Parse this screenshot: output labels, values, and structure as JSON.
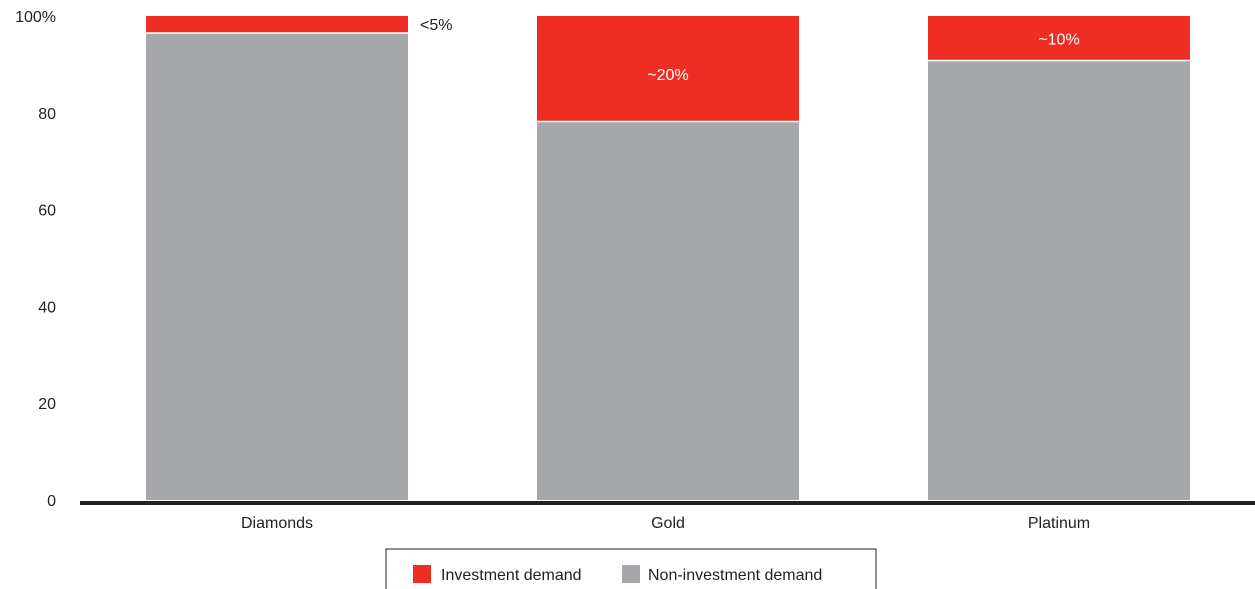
{
  "chart_data": {
    "type": "bar",
    "stacked": true,
    "categories": [
      "Diamonds",
      "Gold",
      "Platinum"
    ],
    "series": [
      {
        "name": "Non-investment demand",
        "values": [
          96.5,
          78.2,
          90.8
        ],
        "color": "#a7a8ab"
      },
      {
        "name": "Investment demand",
        "values": [
          3.5,
          21.8,
          9.2
        ],
        "color": "#ee2d24"
      }
    ],
    "data_labels": [
      "<5%",
      "~20%",
      "~10%"
    ],
    "yticks": [
      "0",
      "20",
      "40",
      "60",
      "80",
      "100%"
    ],
    "ylim": [
      0,
      100
    ],
    "title": "",
    "xlabel": "",
    "ylabel": "",
    "grid": false,
    "legend": {
      "placement": "bottom-center",
      "entries": [
        "Investment demand",
        "Non-investment demand"
      ]
    },
    "colors": {
      "investment": "#ee2d24",
      "non_investment": "#a7a8ab",
      "axis": "#231f20"
    }
  }
}
